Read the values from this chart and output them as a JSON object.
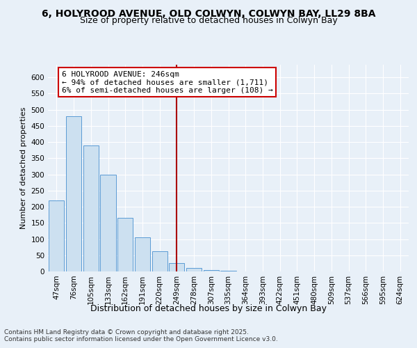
{
  "title1": "6, HOLYROOD AVENUE, OLD COLWYN, COLWYN BAY, LL29 8BA",
  "title2": "Size of property relative to detached houses in Colwyn Bay",
  "xlabel": "Distribution of detached houses by size in Colwyn Bay",
  "ylabel": "Number of detached properties",
  "categories": [
    "47sqm",
    "76sqm",
    "105sqm",
    "133sqm",
    "162sqm",
    "191sqm",
    "220sqm",
    "249sqm",
    "278sqm",
    "307sqm",
    "335sqm",
    "364sqm",
    "393sqm",
    "422sqm",
    "451sqm",
    "480sqm",
    "509sqm",
    "537sqm",
    "566sqm",
    "595sqm",
    "624sqm"
  ],
  "values": [
    220,
    480,
    390,
    300,
    165,
    105,
    63,
    25,
    10,
    5,
    2,
    1,
    1,
    0,
    0,
    0,
    0,
    0,
    0,
    0,
    0
  ],
  "bar_color": "#cce0f0",
  "bar_edge_color": "#5b9bd5",
  "highlight_index": 7,
  "highlight_color": "#aa0000",
  "annotation_title": "6 HOLYROOD AVENUE: 246sqm",
  "annotation_line1": "← 94% of detached houses are smaller (1,711)",
  "annotation_line2": "6% of semi-detached houses are larger (108) →",
  "annotation_box_color": "#ffffff",
  "annotation_box_edge": "#cc0000",
  "footer1": "Contains HM Land Registry data © Crown copyright and database right 2025.",
  "footer2": "Contains public sector information licensed under the Open Government Licence v3.0.",
  "ylim": [
    0,
    640
  ],
  "yticks": [
    0,
    50,
    100,
    150,
    200,
    250,
    300,
    350,
    400,
    450,
    500,
    550,
    600
  ],
  "bg_color": "#e8f0f8",
  "plot_bg_color": "#e8f0f8",
  "title_fontsize": 10,
  "subtitle_fontsize": 9,
  "annotation_fontsize": 8,
  "xlabel_fontsize": 9,
  "ylabel_fontsize": 8,
  "tick_fontsize": 7.5
}
